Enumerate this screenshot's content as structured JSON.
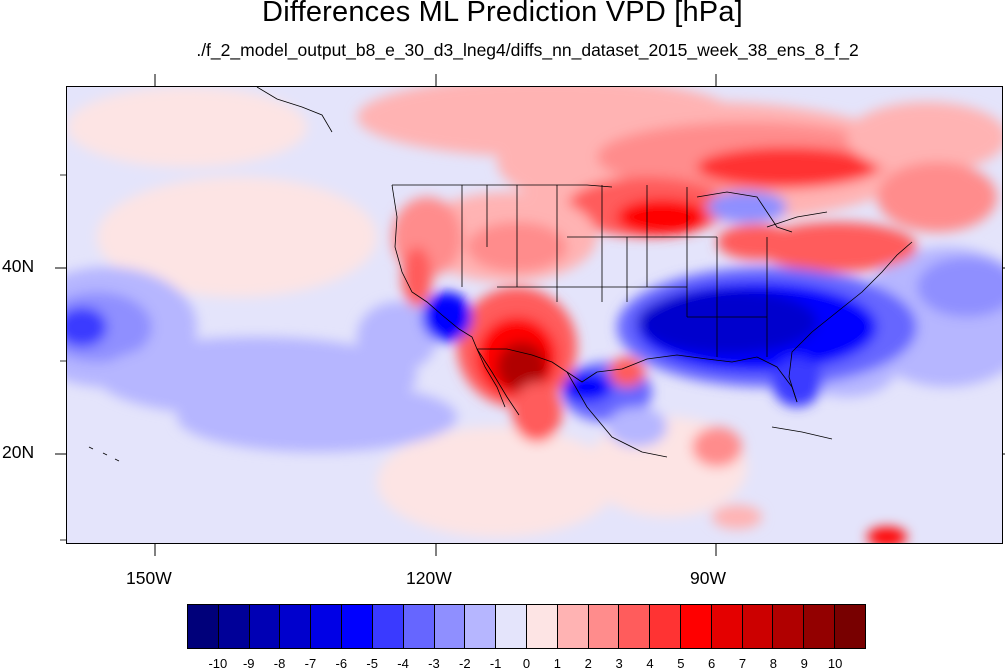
{
  "title": "Differences ML Prediction VPD [hPa]",
  "subtitle": "./f_2_model_output_b8_e_30_d3_lneg4/diffs_nn_dataset_2015_week_38_ens_8_f_2",
  "axes": {
    "lon_labels": [
      "150W",
      "120W",
      "90W"
    ],
    "lat_labels": [
      "40N",
      "20N"
    ]
  },
  "colorbar": {
    "labels": [
      "-10",
      "-9",
      "-8",
      "-7",
      "-6",
      "-5",
      "-4",
      "-3",
      "-2",
      "-1",
      "0",
      "1",
      "2",
      "3",
      "4",
      "5",
      "6",
      "7",
      "8",
      "9",
      "10"
    ],
    "colors": [
      "#00007a",
      "#000098",
      "#0000b4",
      "#0000cd",
      "#0000e6",
      "#0000ff",
      "#3a3aff",
      "#6666ff",
      "#8f8fff",
      "#b6b6ff",
      "#e4e4fb",
      "#fde4e4",
      "#ffb3b3",
      "#ff8c8c",
      "#ff5c5c",
      "#ff3333",
      "#ff0000",
      "#e40000",
      "#cc0000",
      "#b00000",
      "#930000",
      "#780000"
    ]
  }
}
